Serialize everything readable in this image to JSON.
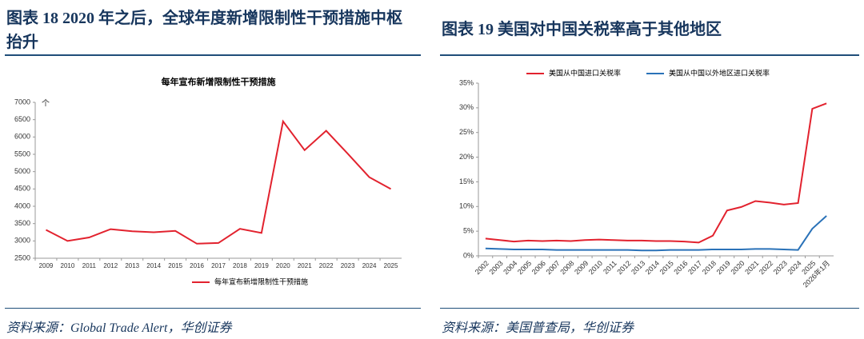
{
  "chart_data": [
    {
      "type": "line",
      "caption": "图表 18   2020 年之后，全球年度新增限制性干预措施中枢抬升",
      "title": "每年宣布新增限制性干预措施",
      "annotation": "个",
      "source": "资料来源：Global Trade Alert，华创证券",
      "categories": [
        "2009",
        "2010",
        "2011",
        "2012",
        "2013",
        "2014",
        "2015",
        "2016",
        "2017",
        "2018",
        "2019",
        "2020",
        "2021",
        "2022",
        "2023",
        "2024",
        "2025"
      ],
      "series": [
        {
          "name": "每年宣布新增限制性干预措施",
          "color": "#e2222e",
          "values": [
            3320,
            3000,
            3100,
            3340,
            3280,
            3250,
            3290,
            2920,
            2940,
            3350,
            3230,
            6450,
            5620,
            6180,
            5520,
            4840,
            4500
          ]
        }
      ],
      "ylim": [
        2500,
        7000
      ],
      "yticks": [
        2500,
        3000,
        3500,
        4000,
        4500,
        5000,
        5500,
        6000,
        6500,
        7000
      ],
      "legend": "bottom"
    },
    {
      "type": "line",
      "caption": "图表 19   美国对中国关税率高于其他地区",
      "source": "资料来源：美国普查局，华创证券",
      "categories": [
        "2002",
        "2003",
        "2004",
        "2005",
        "2006",
        "2007",
        "2008",
        "2009",
        "2010",
        "2011",
        "2012",
        "2013",
        "2014",
        "2015",
        "2016",
        "2017",
        "2018",
        "2019",
        "2020",
        "2021",
        "2022",
        "2023",
        "2024",
        "2025",
        "2026年1月"
      ],
      "series": [
        {
          "name": "美国从中国进口关税率",
          "color": "#e2222e",
          "values": [
            3.5,
            3.2,
            2.9,
            3.1,
            3.0,
            3.1,
            3.0,
            3.2,
            3.3,
            3.2,
            3.1,
            3.1,
            3.0,
            3.0,
            2.9,
            2.7,
            4.1,
            9.2,
            9.9,
            11.1,
            10.8,
            10.4,
            10.7,
            29.8,
            30.9
          ]
        },
        {
          "name": "美国从中国以外地区进口关税率",
          "color": "#2a72b8",
          "values": [
            1.5,
            1.4,
            1.3,
            1.3,
            1.3,
            1.2,
            1.2,
            1.2,
            1.2,
            1.2,
            1.2,
            1.1,
            1.1,
            1.2,
            1.2,
            1.2,
            1.3,
            1.3,
            1.3,
            1.4,
            1.4,
            1.3,
            1.2,
            5.5,
            8.1
          ]
        }
      ],
      "ylim": [
        0,
        35
      ],
      "yticks": [
        {
          "value": 0,
          "label": "0%"
        },
        {
          "value": 5,
          "label": "5%"
        },
        {
          "value": 10,
          "label": "10%"
        },
        {
          "value": 15,
          "label": "15%"
        },
        {
          "value": 20,
          "label": "20%"
        },
        {
          "value": 25,
          "label": "25%"
        },
        {
          "value": 30,
          "label": "30%"
        },
        {
          "value": 35,
          "label": "35%"
        }
      ],
      "legend": "top"
    }
  ]
}
